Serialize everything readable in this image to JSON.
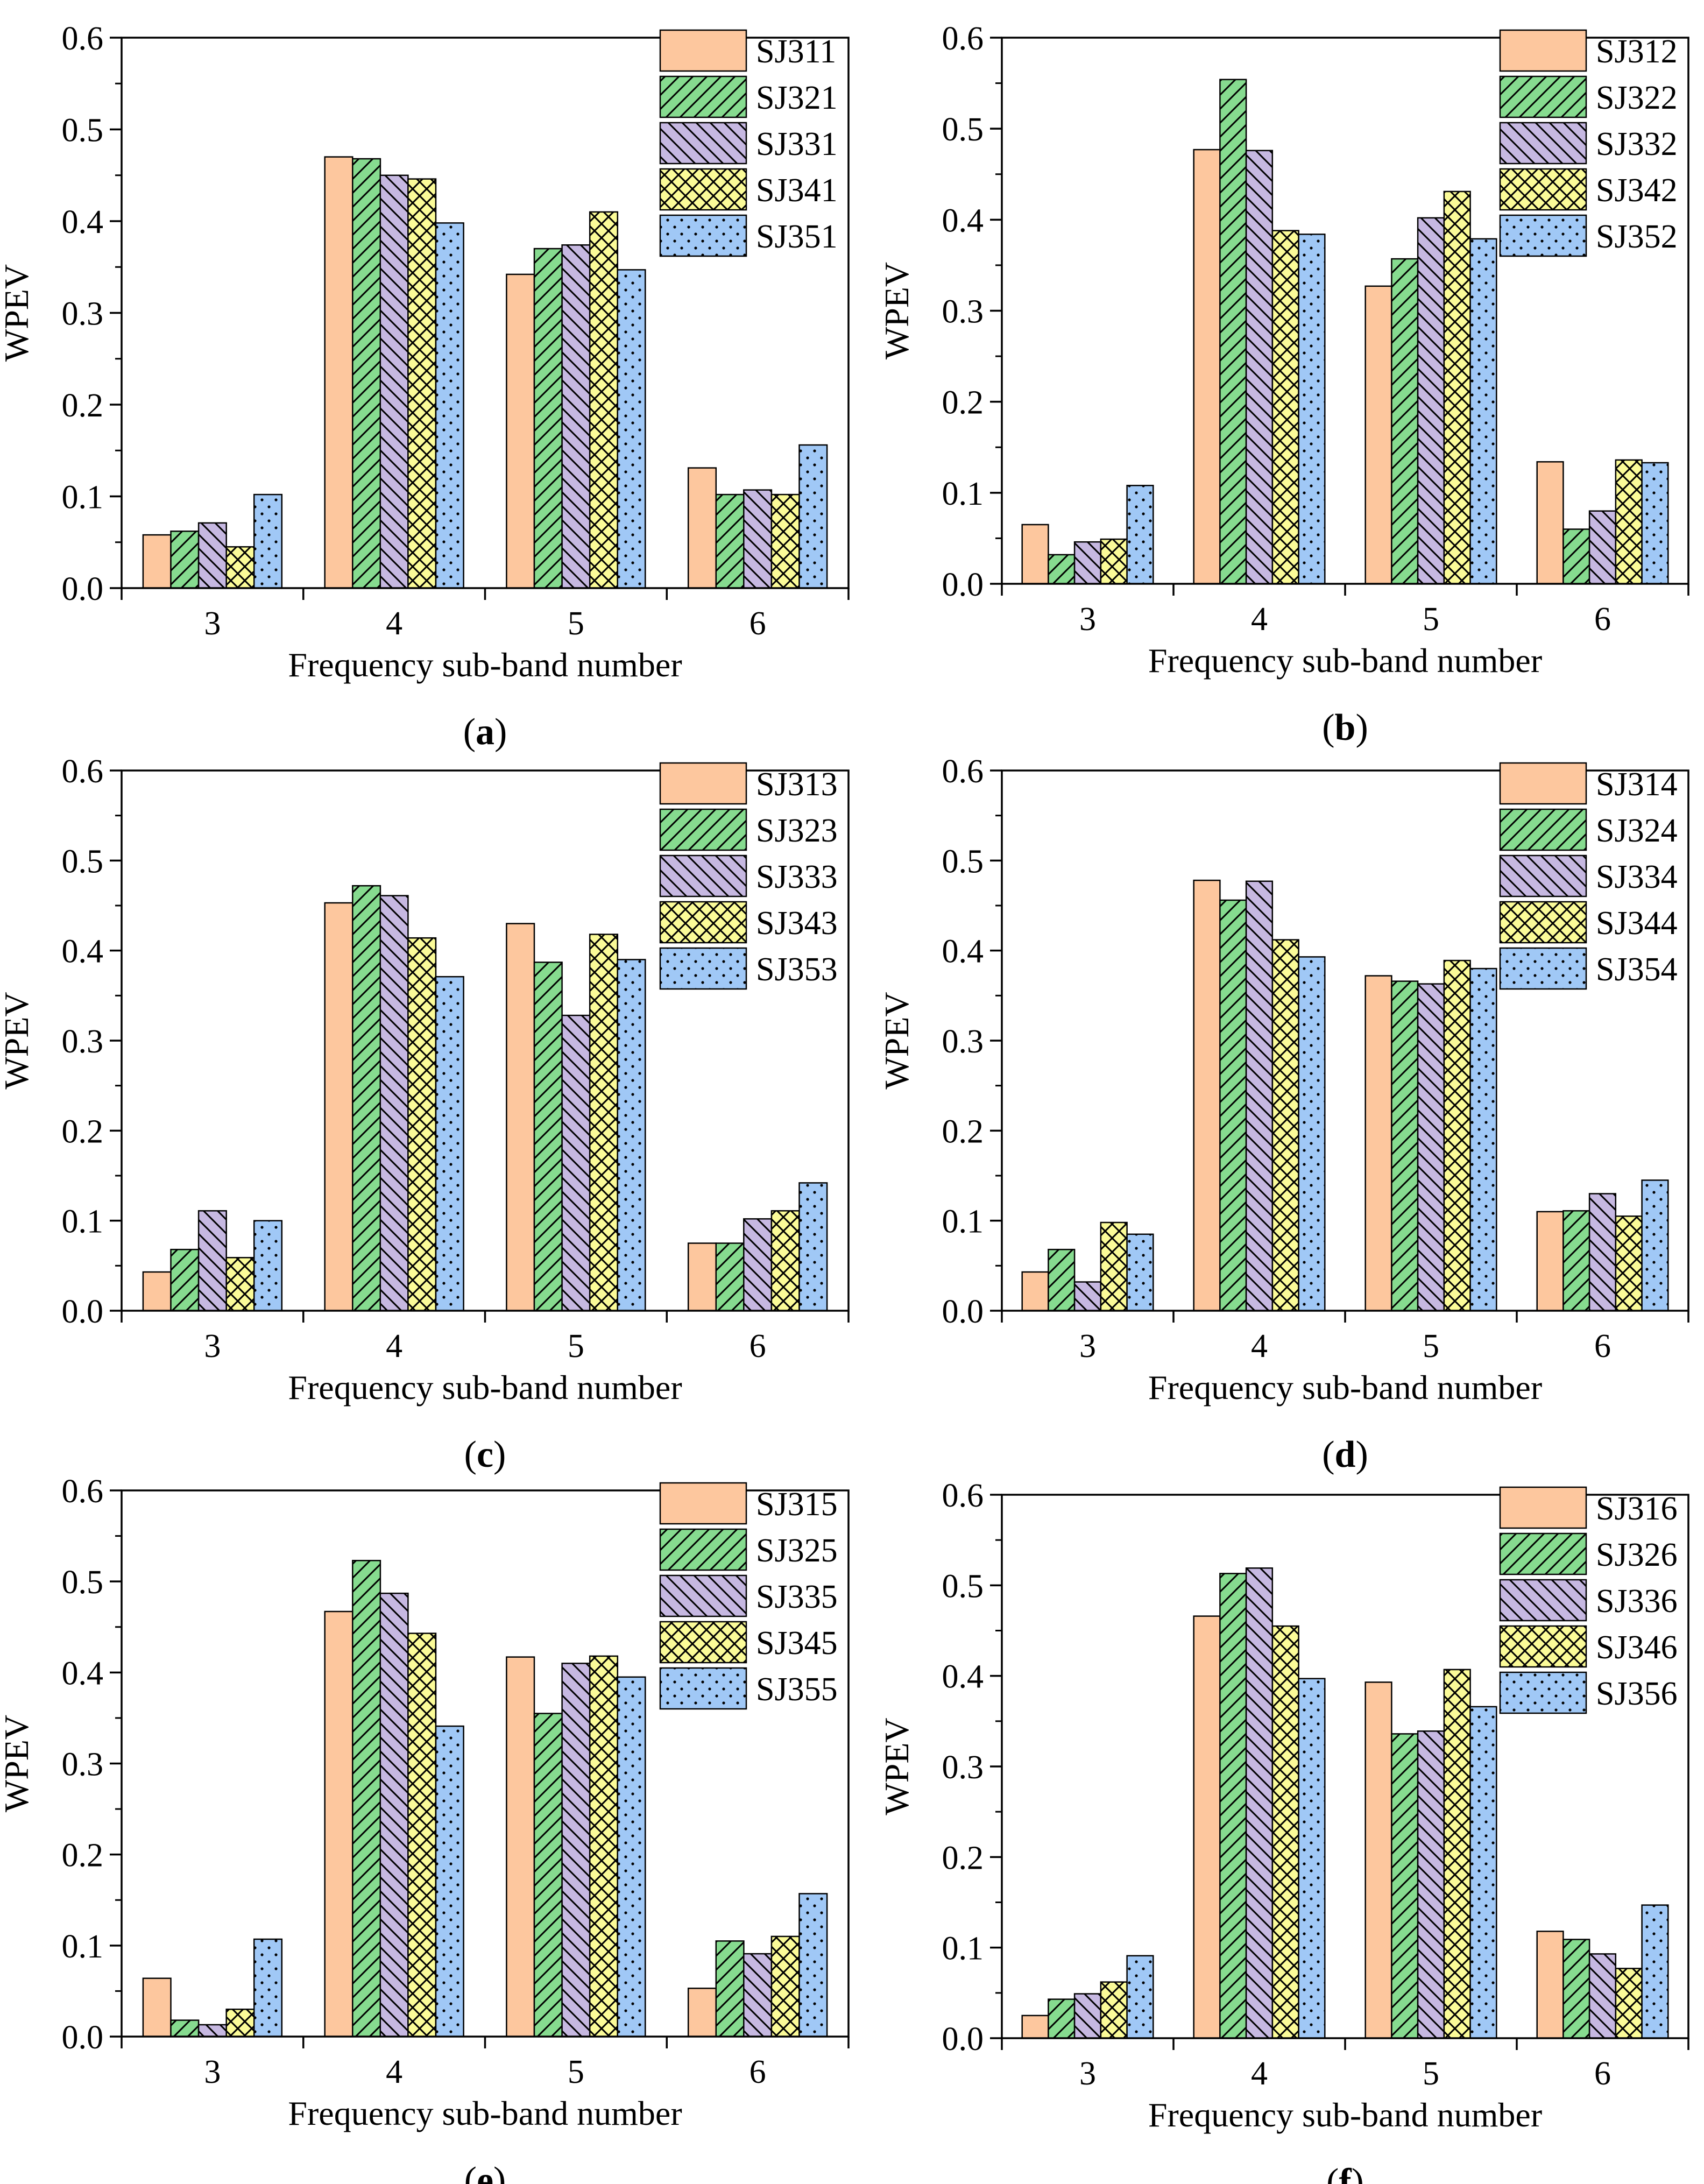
{
  "colors": {
    "SJ3x1": "#FDC79E",
    "SJ3x2": "#86DB8F",
    "SJ3x3": "#C6B8E1",
    "SJ3x4": "#FBFB98",
    "SJ3x5": "#A0C8F6",
    "axis": "#000000"
  },
  "pattern_names": [
    "solid",
    "diag-up",
    "diag-down",
    "crosshatch",
    "dots"
  ],
  "chart_data": [
    {
      "type": "bar",
      "panel_label": "a",
      "xlabel": "Frequency sub-band number",
      "ylabel": "WPEV",
      "ylim": [
        0,
        0.6
      ],
      "yticks": [
        "0.0",
        "0.1",
        "0.2",
        "0.3",
        "0.4",
        "0.5",
        "0.6"
      ],
      "categories": [
        "3",
        "4",
        "5",
        "6"
      ],
      "legend_position": "top-right",
      "series": [
        {
          "name": "SJ311",
          "values": [
            0.058,
            0.47,
            0.342,
            0.131
          ]
        },
        {
          "name": "SJ321",
          "values": [
            0.062,
            0.468,
            0.37,
            0.102
          ]
        },
        {
          "name": "SJ331",
          "values": [
            0.071,
            0.45,
            0.374,
            0.107
          ]
        },
        {
          "name": "SJ341",
          "values": [
            0.045,
            0.446,
            0.41,
            0.102
          ]
        },
        {
          "name": "SJ351",
          "values": [
            0.102,
            0.398,
            0.347,
            0.156
          ]
        }
      ]
    },
    {
      "type": "bar",
      "panel_label": "b",
      "xlabel": "Frequency sub-band number",
      "ylabel": "WPEV",
      "ylim": [
        0,
        0.6
      ],
      "yticks": [
        "0.0",
        "0.1",
        "0.2",
        "0.3",
        "0.4",
        "0.5",
        "0.6"
      ],
      "categories": [
        "3",
        "4",
        "5",
        "6"
      ],
      "legend_position": "top-right",
      "series": [
        {
          "name": "SJ312",
          "values": [
            0.065,
            0.477,
            0.327,
            0.134
          ]
        },
        {
          "name": "SJ322",
          "values": [
            0.032,
            0.554,
            0.357,
            0.06
          ]
        },
        {
          "name": "SJ332",
          "values": [
            0.046,
            0.476,
            0.402,
            0.08
          ]
        },
        {
          "name": "SJ342",
          "values": [
            0.049,
            0.388,
            0.431,
            0.136
          ]
        },
        {
          "name": "SJ352",
          "values": [
            0.108,
            0.384,
            0.379,
            0.133
          ]
        }
      ]
    },
    {
      "type": "bar",
      "panel_label": "c",
      "xlabel": "Frequency sub-band number",
      "ylabel": "WPEV",
      "ylim": [
        0,
        0.6
      ],
      "yticks": [
        "0.0",
        "0.1",
        "0.2",
        "0.3",
        "0.4",
        "0.5",
        "0.6"
      ],
      "categories": [
        "3",
        "4",
        "5",
        "6"
      ],
      "legend_position": "top-right",
      "series": [
        {
          "name": "SJ313",
          "values": [
            0.043,
            0.453,
            0.43,
            0.075
          ]
        },
        {
          "name": "SJ323",
          "values": [
            0.068,
            0.472,
            0.387,
            0.075
          ]
        },
        {
          "name": "SJ333",
          "values": [
            0.111,
            0.461,
            0.328,
            0.102
          ]
        },
        {
          "name": "SJ343",
          "values": [
            0.059,
            0.414,
            0.418,
            0.111
          ]
        },
        {
          "name": "SJ353",
          "values": [
            0.1,
            0.371,
            0.39,
            0.142
          ]
        }
      ]
    },
    {
      "type": "bar",
      "panel_label": "d",
      "xlabel": "Frequency sub-band number",
      "ylabel": "WPEV",
      "ylim": [
        0,
        0.6
      ],
      "yticks": [
        "0.0",
        "0.1",
        "0.2",
        "0.3",
        "0.4",
        "0.5",
        "0.6"
      ],
      "categories": [
        "3",
        "4",
        "5",
        "6"
      ],
      "legend_position": "top-right",
      "series": [
        {
          "name": "SJ314",
          "values": [
            0.043,
            0.478,
            0.372,
            0.11
          ]
        },
        {
          "name": "SJ324",
          "values": [
            0.068,
            0.456,
            0.366,
            0.111
          ]
        },
        {
          "name": "SJ334",
          "values": [
            0.032,
            0.477,
            0.363,
            0.13
          ]
        },
        {
          "name": "SJ344",
          "values": [
            0.098,
            0.412,
            0.389,
            0.105
          ]
        },
        {
          "name": "SJ354",
          "values": [
            0.085,
            0.393,
            0.38,
            0.145
          ]
        }
      ]
    },
    {
      "type": "bar",
      "panel_label": "e",
      "xlabel": "Frequency sub-band number",
      "ylabel": "WPEV",
      "ylim": [
        0,
        0.6
      ],
      "yticks": [
        "0.0",
        "0.1",
        "0.2",
        "0.3",
        "0.4",
        "0.5",
        "0.6"
      ],
      "categories": [
        "3",
        "4",
        "5",
        "6"
      ],
      "legend_position": "top-right",
      "series": [
        {
          "name": "SJ315",
          "values": [
            0.064,
            0.467,
            0.417,
            0.053
          ]
        },
        {
          "name": "SJ325",
          "values": [
            0.018,
            0.523,
            0.355,
            0.105
          ]
        },
        {
          "name": "SJ335",
          "values": [
            0.013,
            0.487,
            0.41,
            0.091
          ]
        },
        {
          "name": "SJ345",
          "values": [
            0.03,
            0.443,
            0.418,
            0.11
          ]
        },
        {
          "name": "SJ355",
          "values": [
            0.107,
            0.341,
            0.395,
            0.157
          ]
        }
      ]
    },
    {
      "type": "bar",
      "panel_label": "f",
      "xlabel": "Frequency sub-band number",
      "ylabel": "WPEV",
      "ylim": [
        0,
        0.6
      ],
      "yticks": [
        "0.0",
        "0.1",
        "0.2",
        "0.3",
        "0.4",
        "0.5",
        "0.6"
      ],
      "categories": [
        "3",
        "4",
        "5",
        "6"
      ],
      "legend_position": "top-right",
      "series": [
        {
          "name": "SJ316",
          "values": [
            0.025,
            0.466,
            0.393,
            0.118
          ]
        },
        {
          "name": "SJ326",
          "values": [
            0.043,
            0.513,
            0.336,
            0.109
          ]
        },
        {
          "name": "SJ336",
          "values": [
            0.049,
            0.519,
            0.339,
            0.093
          ]
        },
        {
          "name": "SJ346",
          "values": [
            0.062,
            0.455,
            0.407,
            0.077
          ]
        },
        {
          "name": "SJ356",
          "values": [
            0.091,
            0.397,
            0.366,
            0.147
          ]
        }
      ]
    }
  ]
}
